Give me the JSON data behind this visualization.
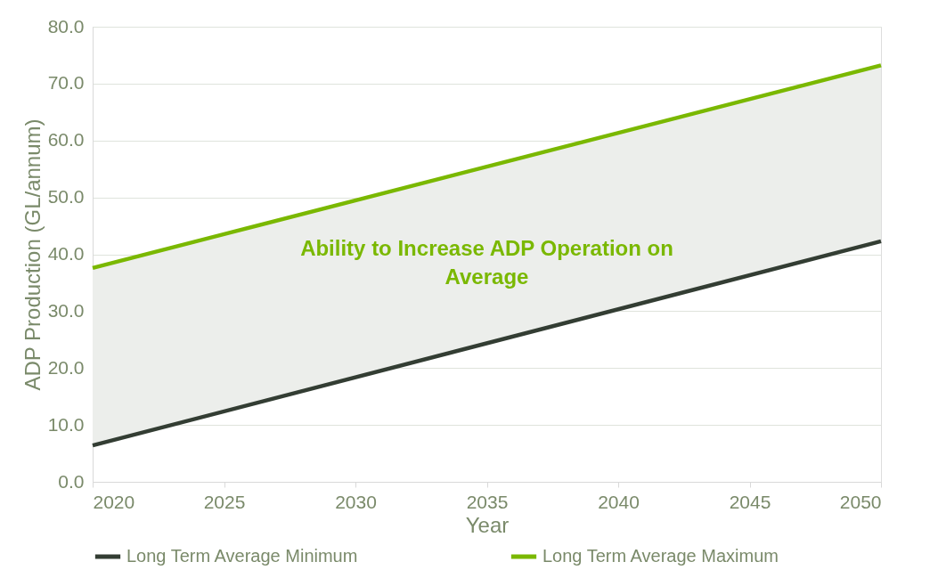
{
  "chart_data": {
    "type": "line",
    "xlabel": "Year",
    "ylabel": "ADP Production (GL/annum)",
    "x": [
      2020,
      2050
    ],
    "series": [
      {
        "name": "Long Term Average Minimum",
        "color": "#333d33",
        "values": [
          6.4,
          42.3
        ]
      },
      {
        "name": "Long Term Average Maximum",
        "color": "#7ab800",
        "values": [
          37.6,
          73.2
        ],
        "lower": [
          6.4,
          42.3
        ],
        "upper": [
          37.6,
          73.2
        ]
      }
    ],
    "annotations": [
      "Ability to Increase ADP Operation on Average"
    ],
    "xlim": [
      2020,
      2050
    ],
    "xticks": [
      2020,
      2025,
      2030,
      2035,
      2040,
      2045,
      2050
    ],
    "ylim": [
      0,
      80
    ],
    "yticks": [
      {
        "value": 0,
        "label": "0.0"
      },
      {
        "value": 10,
        "label": "10.0"
      },
      {
        "value": 20,
        "label": "20.0"
      },
      {
        "value": 30,
        "label": "30.0"
      },
      {
        "value": 40,
        "label": "40.0"
      },
      {
        "value": 50,
        "label": "50.0"
      },
      {
        "value": 60,
        "label": "60.0"
      },
      {
        "value": 70,
        "label": "70.0"
      },
      {
        "value": 80,
        "label": "80.0"
      }
    ],
    "grid": "y",
    "legend": "bottom",
    "marker": "none",
    "line_style": "solid"
  }
}
